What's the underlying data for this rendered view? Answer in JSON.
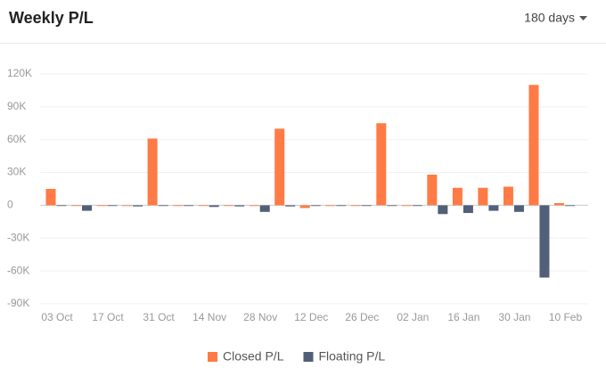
{
  "period_selector": "180 days",
  "chart_data": {
    "type": "bar",
    "title": "Weekly P/L",
    "categories": [
      "03 Oct",
      null,
      "17 Oct",
      null,
      "31 Oct",
      null,
      "14 Nov",
      null,
      "28 Nov",
      null,
      "12 Dec",
      null,
      "26 Dec",
      null,
      "02 Jan",
      null,
      "16 Jan",
      null,
      "30 Jan",
      null,
      "10 Feb"
    ],
    "series": [
      {
        "name": "Closed P/L",
        "color": "#ff7a45",
        "values": [
          15000,
          0,
          -300,
          0,
          61000,
          0,
          0,
          0,
          0,
          70000,
          -2500,
          0,
          0,
          75000,
          0,
          28000,
          16000,
          16000,
          17000,
          110000,
          2000
        ]
      },
      {
        "name": "Floating P/L",
        "color": "#515f78",
        "values": [
          -500,
          -5000,
          -300,
          -1000,
          0,
          0,
          -1500,
          -1000,
          -6000,
          -1000,
          0,
          -500,
          0,
          0,
          -500,
          -8000,
          -7000,
          -5000,
          -6000,
          -66000,
          0
        ]
      }
    ],
    "ylim": [
      -90000,
      120000
    ],
    "yticks": [
      {
        "value": -90000,
        "label": "-90K"
      },
      {
        "value": -60000,
        "label": "-60K"
      },
      {
        "value": -30000,
        "label": "-30K"
      },
      0,
      {
        "value": 30000,
        "label": "30K"
      },
      {
        "value": 60000,
        "label": "60K"
      },
      {
        "value": 90000,
        "label": "90K"
      },
      {
        "value": 120000,
        "label": "120K"
      }
    ],
    "grid": true
  }
}
